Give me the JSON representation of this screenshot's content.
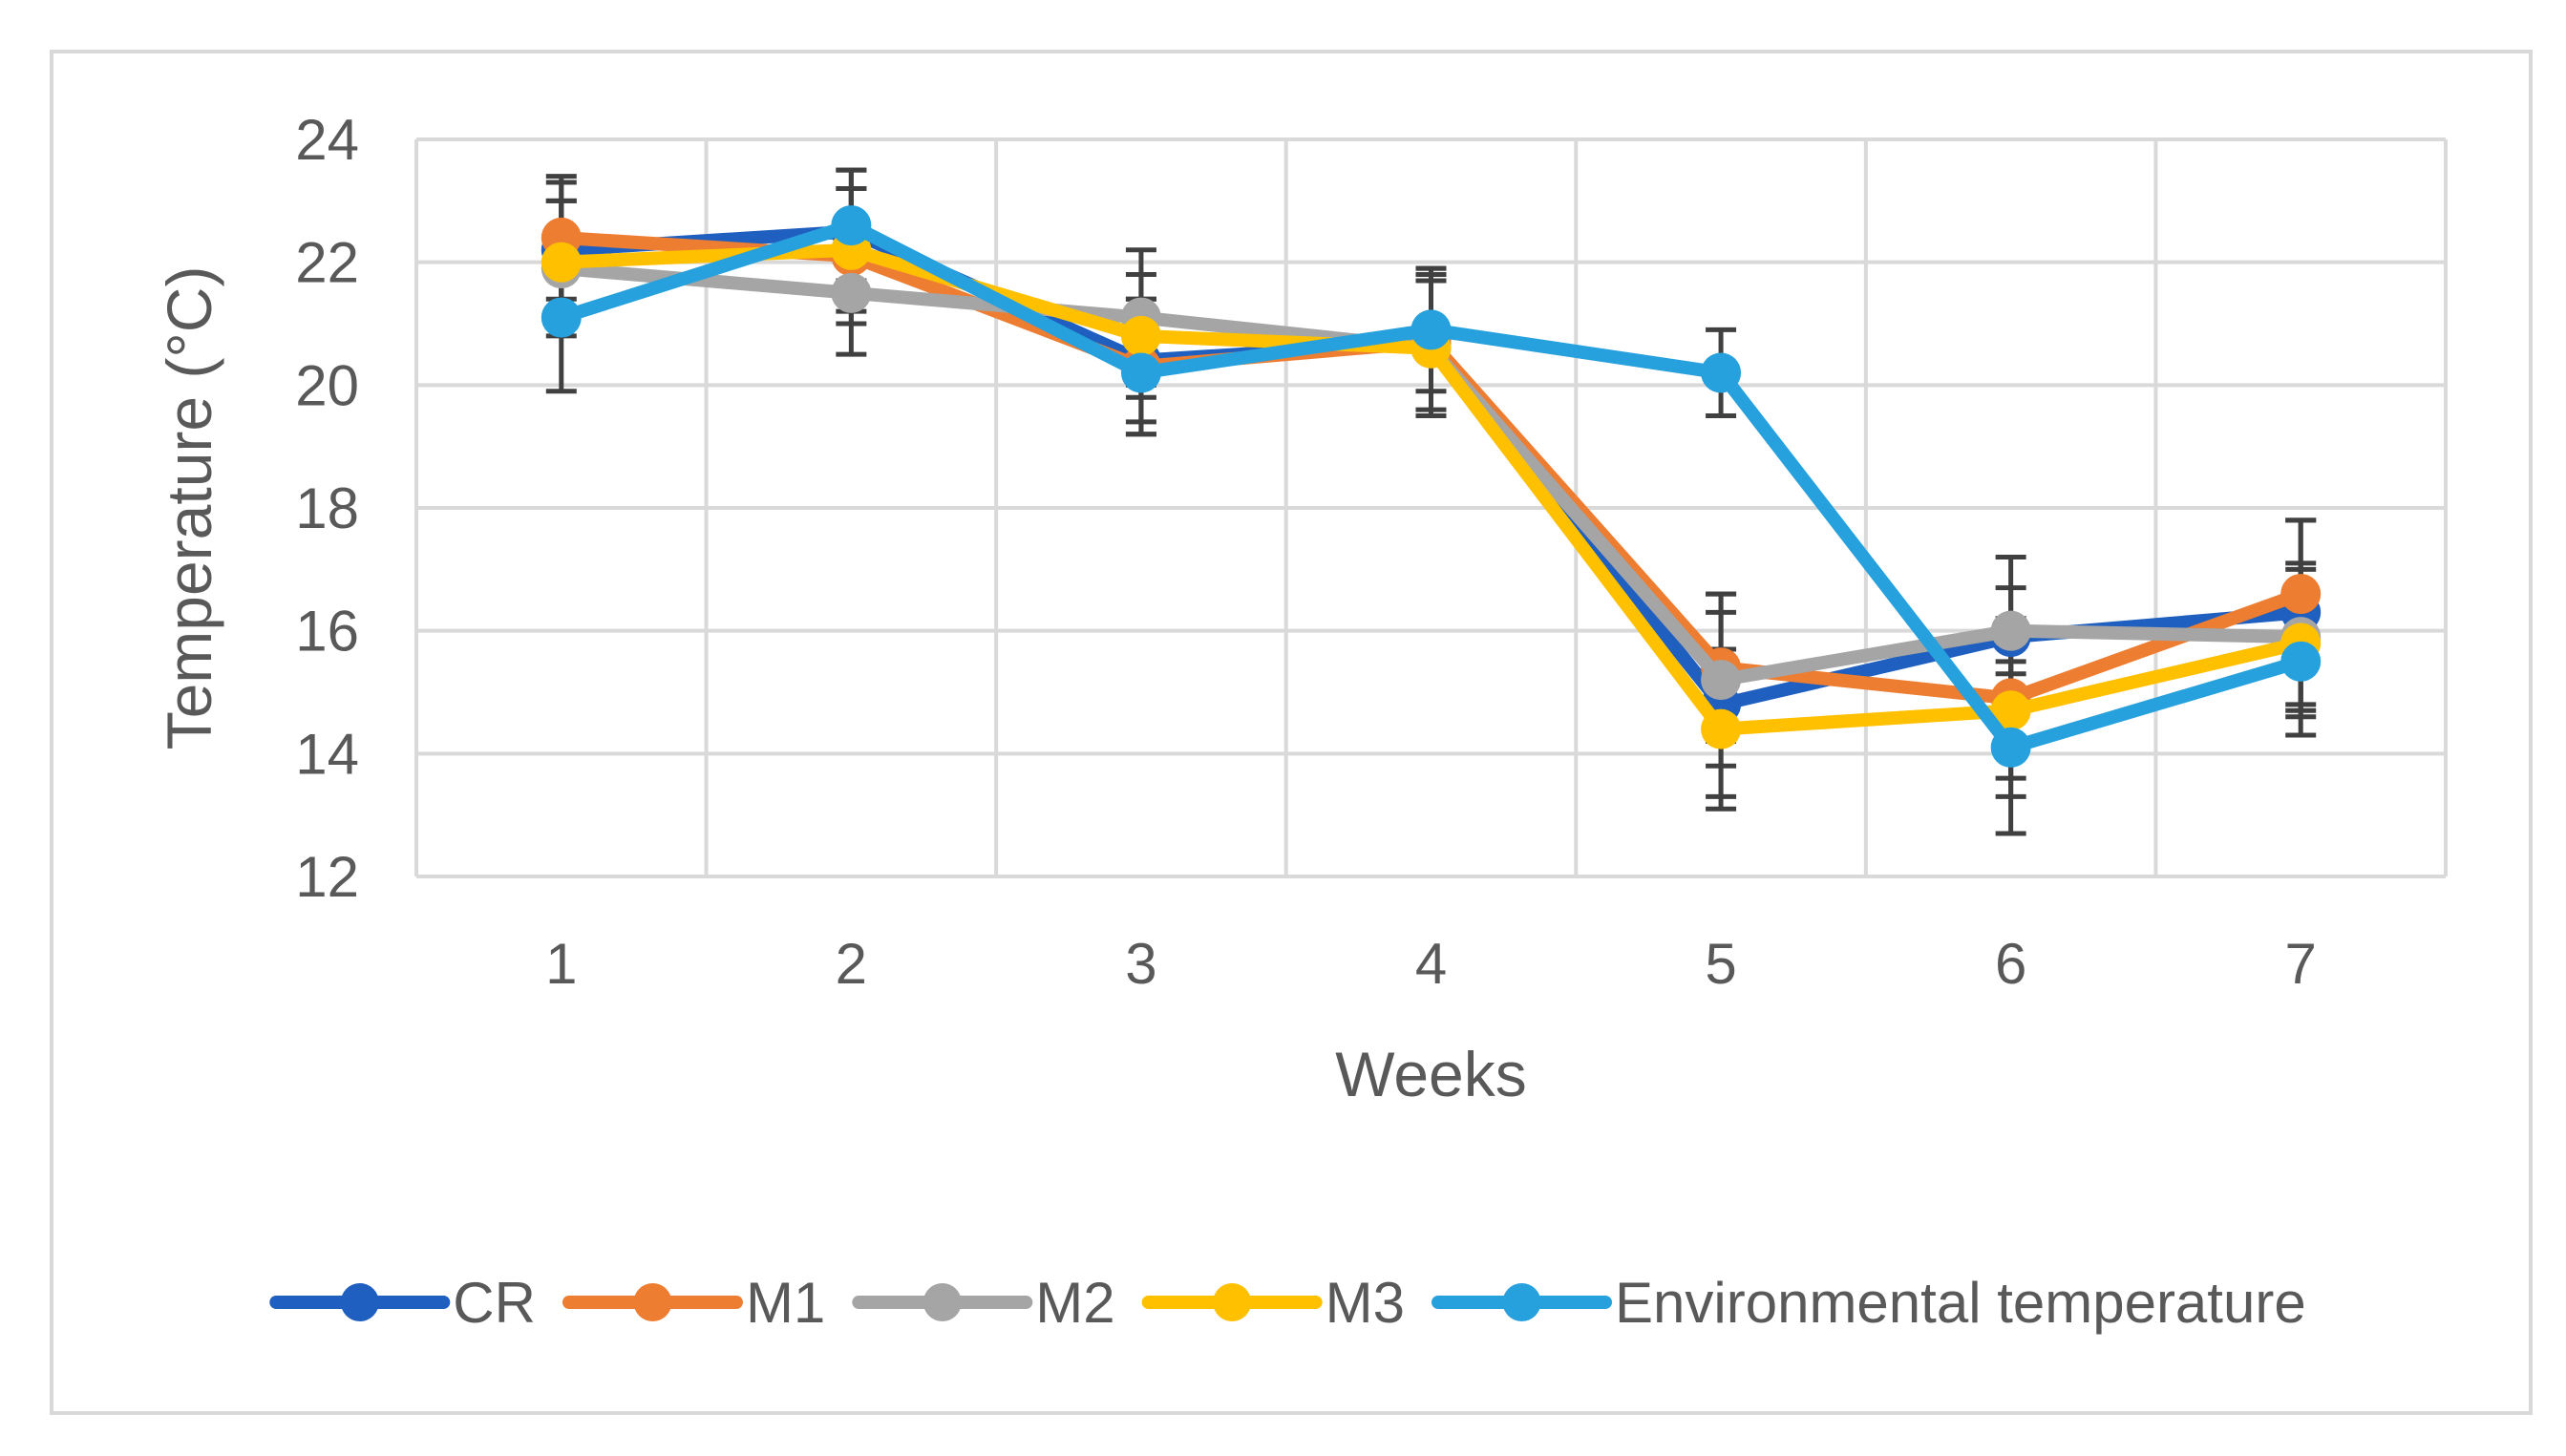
{
  "chart_data": {
    "type": "line",
    "title": "",
    "xlabel": "Weeks",
    "ylabel": "Temperature (°C)",
    "categories": [
      "1",
      "2",
      "3",
      "4",
      "5",
      "6",
      "7"
    ],
    "yticks": [
      "12",
      "14",
      "16",
      "18",
      "20",
      "22",
      "24"
    ],
    "ylim": [
      12,
      24
    ],
    "grid": true,
    "legend_position": "bottom",
    "series": [
      {
        "name": "CR",
        "color": "#1f5fbf",
        "values": [
          22.2,
          22.5,
          20.4,
          20.7,
          14.8,
          15.9,
          16.3
        ],
        "errors": [
          1.1,
          1.0,
          1.0,
          1.1,
          1.5,
          1.3,
          1.5
        ]
      },
      {
        "name": "M1",
        "color": "#ed7d31",
        "values": [
          22.4,
          22.1,
          20.3,
          20.7,
          15.4,
          14.9,
          16.6
        ],
        "errors": [
          1.0,
          1.1,
          1.1,
          1.2,
          1.2,
          1.3,
          1.2
        ]
      },
      {
        "name": "M2",
        "color": "#a5a5a5",
        "values": [
          21.9,
          21.5,
          21.1,
          20.6,
          15.2,
          16.0,
          15.9
        ],
        "errors": [
          1.1,
          1.0,
          1.1,
          1.1,
          1.4,
          0.7,
          1.2
        ]
      },
      {
        "name": "M3",
        "color": "#ffc000",
        "values": [
          22.0,
          22.2,
          20.8,
          20.6,
          14.4,
          14.7,
          15.8
        ],
        "errors": [
          1.0,
          1.0,
          1.0,
          1.1,
          1.3,
          1.4,
          1.2
        ]
      },
      {
        "name": "Environmental temperature",
        "color": "#27a1dd",
        "values": [
          21.1,
          22.6,
          20.2,
          20.9,
          20.2,
          14.1,
          15.5
        ],
        "errors": [
          1.2,
          0.9,
          1.0,
          1.0,
          0.7,
          1.4,
          1.2
        ]
      }
    ]
  }
}
